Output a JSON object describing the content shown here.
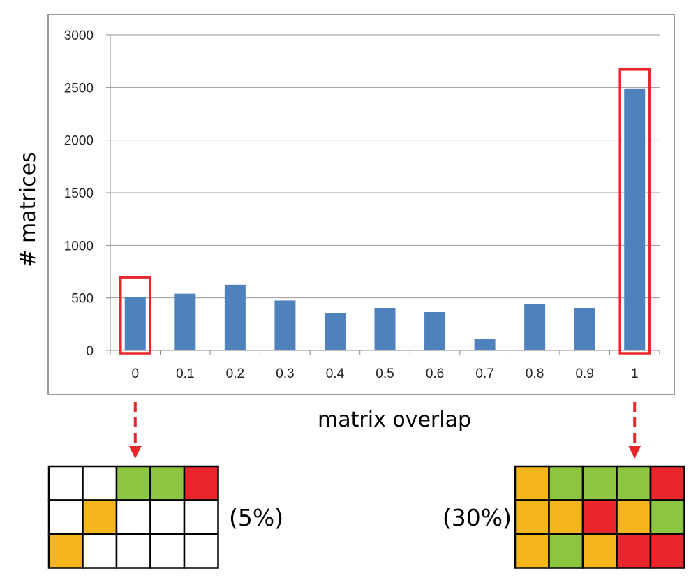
{
  "chart_data": {
    "type": "bar",
    "title": "",
    "xlabel": "matrix overlap",
    "ylabel": "# matrices",
    "categories": [
      "0",
      "0.1",
      "0.2",
      "0.3",
      "0.4",
      "0.5",
      "0.6",
      "0.7",
      "0.8",
      "0.9",
      "1"
    ],
    "values": [
      510,
      540,
      625,
      475,
      355,
      405,
      365,
      110,
      440,
      405,
      2490
    ],
    "ylim": [
      0,
      3000
    ],
    "yticks": [
      "0",
      "500",
      "1000",
      "1500",
      "2000",
      "2500",
      "3000"
    ],
    "grid": true,
    "legend": "none",
    "highlighted_categories": [
      "0",
      "1"
    ]
  },
  "colors": {
    "bar": "#4f81bd",
    "highlight": "#e8262b",
    "arrow": "#e8262b",
    "grid": "#9a9a9a",
    "frame": "#9a9a9a",
    "cell_white": "#ffffff",
    "cell_green": "#8cc540",
    "cell_red": "#e8262b",
    "cell_orange": "#f5b61d"
  },
  "matrices": [
    {
      "label": "(5%)",
      "under_category": "0",
      "cells": [
        [
          "white",
          "white",
          "green",
          "green",
          "red"
        ],
        [
          "white",
          "orange",
          "white",
          "white",
          "white"
        ],
        [
          "orange",
          "white",
          "white",
          "white",
          "white"
        ]
      ]
    },
    {
      "label": "(30%)",
      "under_category": "1",
      "cells": [
        [
          "orange",
          "green",
          "green",
          "green",
          "red"
        ],
        [
          "orange",
          "orange",
          "red",
          "orange",
          "green"
        ],
        [
          "orange",
          "green",
          "orange",
          "red",
          "red"
        ]
      ]
    }
  ]
}
